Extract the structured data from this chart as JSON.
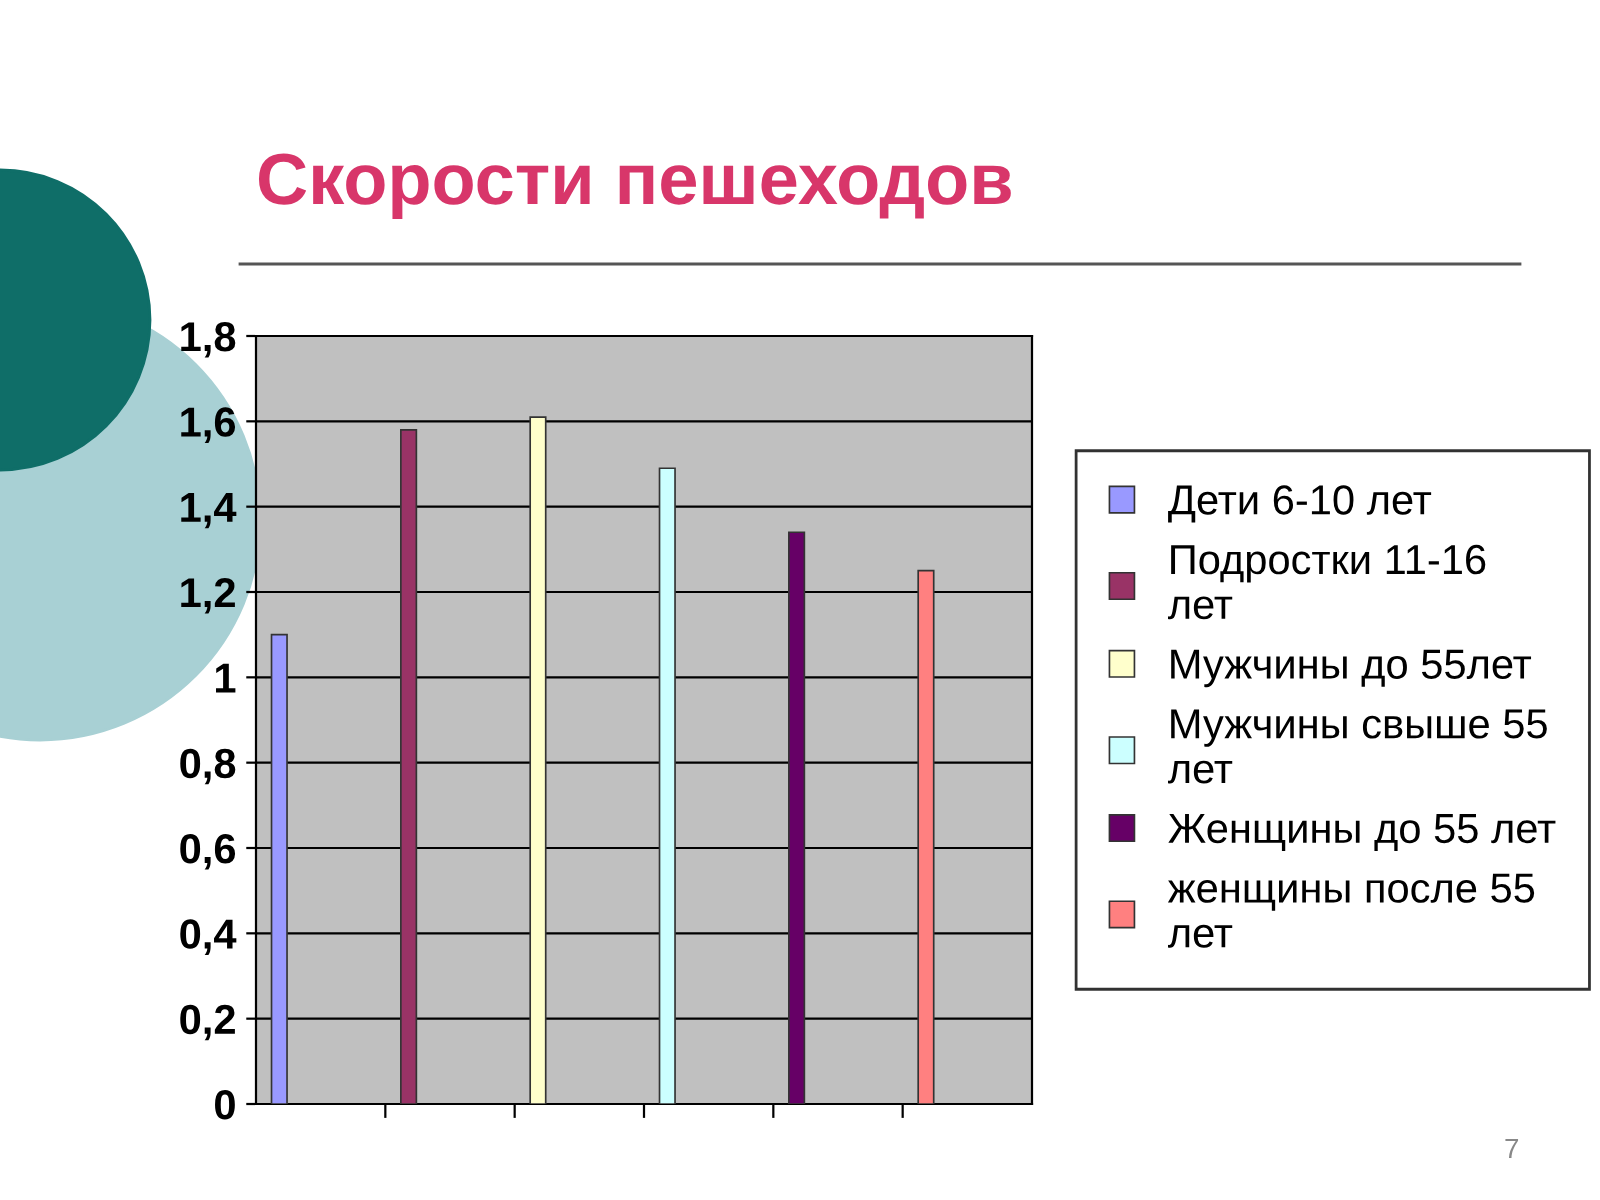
{
  "chart_data": {
    "type": "bar",
    "title": "Скорости пешеходов",
    "categories": [
      null,
      null,
      null,
      null,
      null,
      null
    ],
    "series": [
      {
        "name": "Дети 6-10 лет",
        "color": "#9999ff",
        "values": [
          1.1,
          null,
          null,
          null,
          null,
          null
        ]
      },
      {
        "name": "Подростки 11-16 лет",
        "color": "#993366",
        "values": [
          null,
          1.58,
          null,
          null,
          null,
          null
        ]
      },
      {
        "name": "Мужчины до 55лет",
        "color": "#ffffcc",
        "values": [
          null,
          null,
          1.61,
          null,
          null,
          null
        ]
      },
      {
        "name": "Мужчины свыше 55 лет",
        "color": "#ccffff",
        "values": [
          null,
          null,
          null,
          1.49,
          null,
          null
        ]
      },
      {
        "name": "Женщины до 55 лет",
        "color": "#660066",
        "values": [
          null,
          null,
          null,
          null,
          1.34,
          null
        ]
      },
      {
        "name": "женщины после 55 лет",
        "color": "#ff8080",
        "values": [
          null,
          null,
          null,
          null,
          null,
          1.25
        ]
      }
    ],
    "ylim": [
      0,
      1.8
    ],
    "yticks": [
      {
        "value": 0,
        "label": "0"
      },
      {
        "value": 0.2,
        "label": "0,2"
      },
      {
        "value": 0.4,
        "label": "0,4"
      },
      {
        "value": 0.6,
        "label": "0,6"
      },
      {
        "value": 0.8,
        "label": "0,8"
      },
      {
        "value": 1,
        "label": "1"
      },
      {
        "value": 1.2,
        "label": "1,2"
      },
      {
        "value": 1.4,
        "label": "1,4"
      },
      {
        "value": 1.6,
        "label": "1,6"
      },
      {
        "value": 1.8,
        "label": "1,8"
      }
    ],
    "grid": "y",
    "legend": "right",
    "annotations": [
      "7"
    ]
  }
}
